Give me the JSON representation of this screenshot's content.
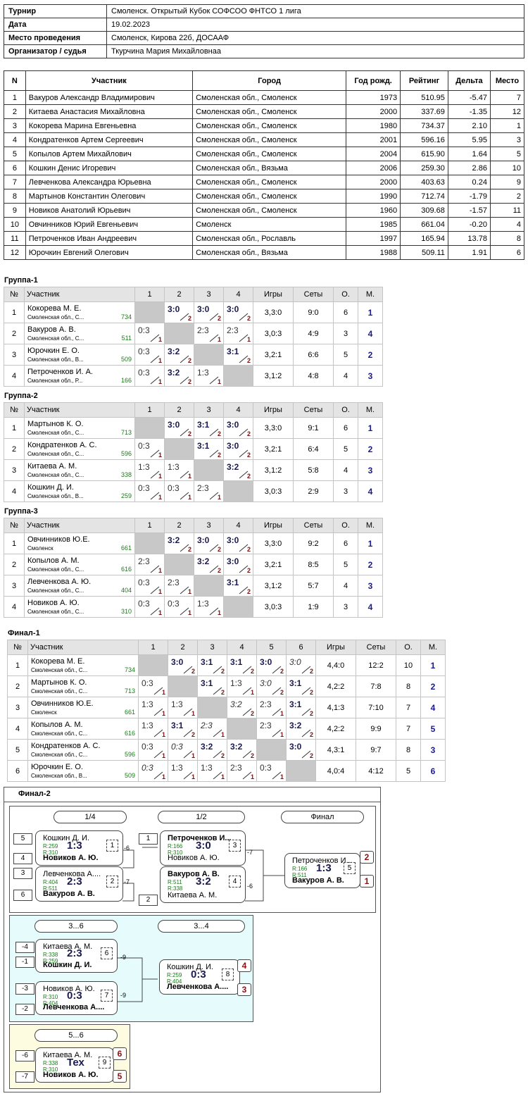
{
  "info": [
    {
      "k": "Турнир",
      "v": "Смоленск. Открытый Кубок СОФСОО ФНТСО 1 лига"
    },
    {
      "k": "Дата",
      "v": "19.02.2023"
    },
    {
      "k": "Место проведения",
      "v": "Смоленск, Кирова 22б, ДОСААФ"
    },
    {
      "k": "Организатор / судья",
      "v": "Ткурчина Мария Михайловнаа"
    }
  ],
  "plist": {
    "headers": [
      "N",
      "Участник",
      "Город",
      "Год рожд.",
      "Рейтинг",
      "Дельта",
      "Место"
    ],
    "rows": [
      [
        "1",
        "Вакуров Александр Владимирович",
        "Смоленская обл., Смоленск",
        "1973",
        "510.95",
        "-5.47",
        "7"
      ],
      [
        "2",
        "Китаева Анастасия Михайловна",
        "Смоленская обл., Смоленск",
        "2000",
        "337.69",
        "-1.35",
        "12"
      ],
      [
        "3",
        "Кокорева Марина Евгеньевна",
        "Смоленская обл., Смоленск",
        "1980",
        "734.37",
        "2.10",
        "1"
      ],
      [
        "4",
        "Кондратенков Артем Сергеевич",
        "Смоленская обл., Смоленск",
        "2001",
        "596.16",
        "5.95",
        "3"
      ],
      [
        "5",
        "Копылов Артем Михайлович",
        "Смоленская обл., Смоленск",
        "2004",
        "615.90",
        "1.64",
        "5"
      ],
      [
        "6",
        "Кошкин Денис Игоревич",
        "Смоленская обл., Вязьма",
        "2006",
        "259.30",
        "2.86",
        "10"
      ],
      [
        "7",
        "Левченкова Александра Юрьевна",
        "Смоленская обл., Смоленск",
        "2000",
        "403.63",
        "0.24",
        "9"
      ],
      [
        "8",
        "Мартынов Константин Олегович",
        "Смоленская обл., Смоленск",
        "1990",
        "712.74",
        "-1.79",
        "2"
      ],
      [
        "9",
        "Новиков Анатолий Юрьевич",
        "Смоленская обл., Смоленск",
        "1960",
        "309.68",
        "-1.57",
        "11"
      ],
      [
        "10",
        "Овчинников Юрий Евгеньевич",
        "Смоленск",
        "1985",
        "661.04",
        "-0.20",
        "4"
      ],
      [
        "11",
        "Петроченков Иван Андреевич",
        "Смоленская обл., Рославль",
        "1997",
        "165.94",
        "13.78",
        "8"
      ],
      [
        "12",
        "Юрочкин Евгений Олегович",
        "Смоленская обл., Вязьма",
        "1988",
        "509.11",
        "1.91",
        "6"
      ]
    ]
  },
  "groups": [
    {
      "title": "Группа-1",
      "headers": [
        "№",
        "Участник",
        "1",
        "2",
        "3",
        "4",
        "Игры",
        "Сеты",
        "О.",
        "М."
      ],
      "rows": [
        {
          "n": "1",
          "name": "Кокорева М. Е.",
          "city": "Смоленская обл., С...",
          "rating": "734",
          "cells": [
            null,
            {
              "s": "3:0",
              "p": "2",
              "w": true
            },
            {
              "s": "3:0",
              "p": "2",
              "w": true
            },
            {
              "s": "3:0",
              "p": "2",
              "w": true
            }
          ],
          "games": "3,3:0",
          "sets": "9:0",
          "pts": "6",
          "place": "1"
        },
        {
          "n": "2",
          "name": "Вакуров А. В.",
          "city": "Смоленская обл., С...",
          "rating": "511",
          "cells": [
            {
              "s": "0:3",
              "p": "1"
            },
            null,
            {
              "s": "2:3",
              "p": "1"
            },
            {
              "s": "2:3",
              "p": "1"
            }
          ],
          "games": "3,0:3",
          "sets": "4:9",
          "pts": "3",
          "place": "4"
        },
        {
          "n": "3",
          "name": "Юрочкин Е. О.",
          "city": "Смоленская обл., В...",
          "rating": "509",
          "cells": [
            {
              "s": "0:3",
              "p": "1"
            },
            {
              "s": "3:2",
              "p": "2",
              "w": true
            },
            null,
            {
              "s": "3:1",
              "p": "2",
              "w": true
            }
          ],
          "games": "3,2:1",
          "sets": "6:6",
          "pts": "5",
          "place": "2"
        },
        {
          "n": "4",
          "name": "Петроченков И. А.",
          "city": "Смоленская обл., Р...",
          "rating": "166",
          "cells": [
            {
              "s": "0:3",
              "p": "1"
            },
            {
              "s": "3:2",
              "p": "2",
              "w": true
            },
            {
              "s": "1:3",
              "p": "1"
            },
            null
          ],
          "games": "3,1:2",
          "sets": "4:8",
          "pts": "4",
          "place": "3"
        }
      ]
    },
    {
      "title": "Группа-2",
      "headers": [
        "№",
        "Участник",
        "1",
        "2",
        "3",
        "4",
        "Игры",
        "Сеты",
        "О.",
        "М."
      ],
      "rows": [
        {
          "n": "1",
          "name": "Мартынов К. О.",
          "city": "Смоленская обл., С...",
          "rating": "713",
          "cells": [
            null,
            {
              "s": "3:0",
              "p": "2",
              "w": true
            },
            {
              "s": "3:1",
              "p": "2",
              "w": true
            },
            {
              "s": "3:0",
              "p": "2",
              "w": true
            }
          ],
          "games": "3,3:0",
          "sets": "9:1",
          "pts": "6",
          "place": "1"
        },
        {
          "n": "2",
          "name": "Кондратенков А. С.",
          "city": "Смоленская обл., С...",
          "rating": "596",
          "cells": [
            {
              "s": "0:3",
              "p": "1"
            },
            null,
            {
              "s": "3:1",
              "p": "2",
              "w": true
            },
            {
              "s": "3:0",
              "p": "2",
              "w": true
            }
          ],
          "games": "3,2:1",
          "sets": "6:4",
          "pts": "5",
          "place": "2"
        },
        {
          "n": "3",
          "name": "Китаева А. М.",
          "city": "Смоленская обл., С...",
          "rating": "338",
          "cells": [
            {
              "s": "1:3",
              "p": "1"
            },
            {
              "s": "1:3",
              "p": "1"
            },
            null,
            {
              "s": "3:2",
              "p": "2",
              "w": true
            }
          ],
          "games": "3,1:2",
          "sets": "5:8",
          "pts": "4",
          "place": "3"
        },
        {
          "n": "4",
          "name": "Кошкин Д. И.",
          "city": "Смоленская обл., В...",
          "rating": "259",
          "cells": [
            {
              "s": "0:3",
              "p": "1"
            },
            {
              "s": "0:3",
              "p": "1"
            },
            {
              "s": "2:3",
              "p": "1"
            },
            null
          ],
          "games": "3,0:3",
          "sets": "2:9",
          "pts": "3",
          "place": "4"
        }
      ]
    },
    {
      "title": "Группа-3",
      "headers": [
        "№",
        "Участник",
        "1",
        "2",
        "3",
        "4",
        "Игры",
        "Сеты",
        "О.",
        "М."
      ],
      "rows": [
        {
          "n": "1",
          "name": "Овчинников Ю.Е.",
          "city": "Смоленск",
          "rating": "661",
          "cells": [
            null,
            {
              "s": "3:2",
              "p": "2",
              "w": true
            },
            {
              "s": "3:0",
              "p": "2",
              "w": true
            },
            {
              "s": "3:0",
              "p": "2",
              "w": true
            }
          ],
          "games": "3,3:0",
          "sets": "9:2",
          "pts": "6",
          "place": "1"
        },
        {
          "n": "2",
          "name": "Копылов А. М.",
          "city": "Смоленская обл., С...",
          "rating": "616",
          "cells": [
            {
              "s": "2:3",
              "p": "1"
            },
            null,
            {
              "s": "3:2",
              "p": "2",
              "w": true
            },
            {
              "s": "3:0",
              "p": "2",
              "w": true
            }
          ],
          "games": "3,2:1",
          "sets": "8:5",
          "pts": "5",
          "place": "2"
        },
        {
          "n": "3",
          "name": "Левченкова А. Ю.",
          "city": "Смоленская обл., С...",
          "rating": "404",
          "cells": [
            {
              "s": "0:3",
              "p": "1"
            },
            {
              "s": "2:3",
              "p": "1"
            },
            null,
            {
              "s": "3:1",
              "p": "2",
              "w": true
            }
          ],
          "games": "3,1:2",
          "sets": "5:7",
          "pts": "4",
          "place": "3"
        },
        {
          "n": "4",
          "name": "Новиков А. Ю.",
          "city": "Смоленская обл., С...",
          "rating": "310",
          "cells": [
            {
              "s": "0:3",
              "p": "1"
            },
            {
              "s": "0:3",
              "p": "1"
            },
            {
              "s": "1:3",
              "p": "1"
            },
            null
          ],
          "games": "3,0:3",
          "sets": "1:9",
          "pts": "3",
          "place": "4"
        }
      ]
    },
    {
      "title": "Финал-1",
      "headers": [
        "№",
        "Участник",
        "1",
        "2",
        "3",
        "4",
        "5",
        "6",
        "Игры",
        "Сеты",
        "О.",
        "М."
      ],
      "rows": [
        {
          "n": "1",
          "name": "Кокорева М. Е.",
          "city": "Смоленская обл., С...",
          "rating": "734",
          "cells": [
            null,
            {
              "s": "3:0",
              "p": "2",
              "w": true
            },
            {
              "s": "3:1",
              "p": "2",
              "w": true
            },
            {
              "s": "3:1",
              "p": "2",
              "w": true
            },
            {
              "s": "3:0",
              "p": "2",
              "w": true
            },
            {
              "s": "3:0",
              "p": "2",
              "i": true
            }
          ],
          "games": "4,4:0",
          "sets": "12:2",
          "pts": "10",
          "place": "1"
        },
        {
          "n": "2",
          "name": "Мартынов К. О.",
          "city": "Смоленская обл., С...",
          "rating": "713",
          "cells": [
            {
              "s": "0:3",
              "p": "1"
            },
            null,
            {
              "s": "3:1",
              "p": "2",
              "w": true
            },
            {
              "s": "1:3",
              "p": "1"
            },
            {
              "s": "3:0",
              "p": "2",
              "i": true
            },
            {
              "s": "3:1",
              "p": "2",
              "w": true
            }
          ],
          "games": "4,2:2",
          "sets": "7:8",
          "pts": "8",
          "place": "2"
        },
        {
          "n": "3",
          "name": "Овчинников Ю.Е.",
          "city": "Смоленск",
          "rating": "661",
          "cells": [
            {
              "s": "1:3",
              "p": "1"
            },
            {
              "s": "1:3",
              "p": "1"
            },
            null,
            {
              "s": "3:2",
              "p": "2",
              "i": true
            },
            {
              "s": "2:3",
              "p": "1"
            },
            {
              "s": "3:1",
              "p": "2",
              "w": true
            }
          ],
          "games": "4,1:3",
          "sets": "7:10",
          "pts": "7",
          "place": "4"
        },
        {
          "n": "4",
          "name": "Копылов А. М.",
          "city": "Смоленская обл., С...",
          "rating": "616",
          "cells": [
            {
              "s": "1:3",
              "p": "1"
            },
            {
              "s": "3:1",
              "p": "2",
              "w": true
            },
            {
              "s": "2:3",
              "p": "1",
              "i": true
            },
            null,
            {
              "s": "2:3",
              "p": "1"
            },
            {
              "s": "3:2",
              "p": "2",
              "w": true
            }
          ],
          "games": "4,2:2",
          "sets": "9:9",
          "pts": "7",
          "place": "5"
        },
        {
          "n": "5",
          "name": "Кондратенков А. С.",
          "city": "Смоленская обл., С...",
          "rating": "596",
          "cells": [
            {
              "s": "0:3",
              "p": "1"
            },
            {
              "s": "0:3",
              "p": "1",
              "i": true
            },
            {
              "s": "3:2",
              "p": "2",
              "w": true
            },
            {
              "s": "3:2",
              "p": "2",
              "w": true
            },
            null,
            {
              "s": "3:0",
              "p": "2",
              "w": true
            }
          ],
          "games": "4,3:1",
          "sets": "9:7",
          "pts": "8",
          "place": "3"
        },
        {
          "n": "6",
          "name": "Юрочкин Е. О.",
          "city": "Смоленская обл., В...",
          "rating": "509",
          "cells": [
            {
              "s": "0:3",
              "p": "1",
              "i": true
            },
            {
              "s": "1:3",
              "p": "1"
            },
            {
              "s": "1:3",
              "p": "1"
            },
            {
              "s": "2:3",
              "p": "1"
            },
            {
              "s": "0:3",
              "p": "1"
            },
            null
          ],
          "games": "4,0:4",
          "sets": "4:12",
          "pts": "5",
          "place": "6"
        }
      ]
    }
  ],
  "final2": {
    "title": "Финал-2",
    "rounds": {
      "r14": "1/4",
      "r12": "1/2",
      "fin": "Финал",
      "r36": "3...6",
      "r34": "3...4",
      "r56": "5...6"
    },
    "m1": {
      "s1": "5",
      "s2": "4",
      "p1": "Кошкин Д. И.",
      "p2": "Новиков А. Ю.",
      "r1": "R:259",
      "r2": "R:310",
      "res": "1:3",
      "num": "1",
      "next": "-6"
    },
    "m2": {
      "s1": "3",
      "s2": "6",
      "p1": "Левченкова А....",
      "p2": "Вакуров А. В.",
      "r1": "R:404",
      "r2": "R:511",
      "res": "2:3",
      "num": "2",
      "next": "-7"
    },
    "m3": {
      "s1": "1",
      "s2": "2",
      "p1": "Петроченков И...",
      "p2": "Новиков А. Ю.",
      "r1": "R:166",
      "r2": "R:310",
      "res": "3:0",
      "num": "3",
      "next": "-7"
    },
    "m4": {
      "p1": "Вакуров А. В.",
      "p2": "Китаева А. М.",
      "r1": "R:511",
      "r2": "R:338",
      "res": "3:2",
      "num": "4",
      "next": "-6"
    },
    "m5": {
      "p1": "Петроченков И...",
      "p2": "Вакуров А. В.",
      "r1": "R:166",
      "r2": "R:511",
      "res": "1:3",
      "num": "5",
      "b1": "2",
      "b2": "1"
    },
    "m6": {
      "s1": "-4",
      "s2": "-1",
      "p1": "Китаева А. М.",
      "p2": "Кошкин Д. И.",
      "r1": "R:338",
      "r2": "R:259",
      "res": "2:3",
      "num": "6",
      "next": "-9"
    },
    "m7": {
      "s1": "-3",
      "s2": "-2",
      "p1": "Новиков А. Ю.",
      "p2": "Левченкова А....",
      "r1": "R:310",
      "r2": "R:404",
      "res": "0:3",
      "num": "7",
      "next": "-9"
    },
    "m8": {
      "p1": "Кошкин Д. И.",
      "p2": "Левченкова А....",
      "r1": "R:259",
      "r2": "R:404",
      "res": "0:3",
      "num": "8",
      "b1": "4",
      "b2": "3"
    },
    "m9": {
      "s1": "-6",
      "s2": "-7",
      "p1": "Китаева А. М.",
      "p2": "Новиков А. Ю.",
      "r1": "R:338",
      "r2": "R:310",
      "res": "Тех",
      "num": "9",
      "b1": "6",
      "b2": "5"
    }
  }
}
